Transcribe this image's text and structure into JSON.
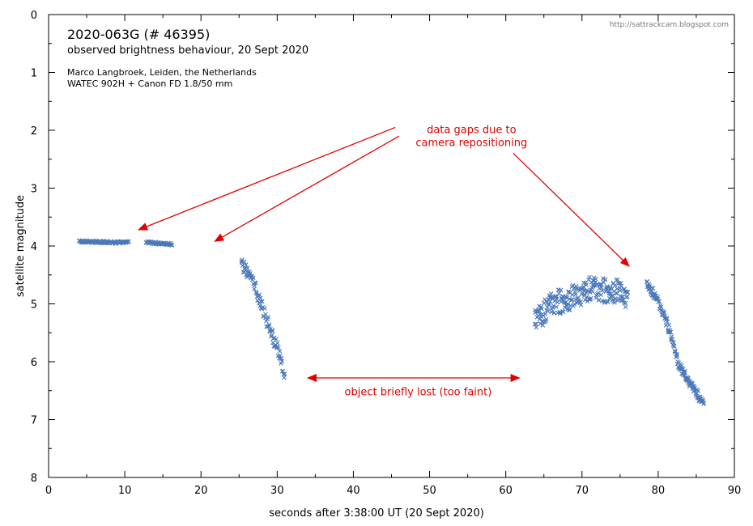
{
  "chart_data": {
    "type": "scatter",
    "title": "2020-063G  (# 46395)",
    "subtitle": "observed brightness behaviour,  20 Sept 2020",
    "credit": [
      "Marco Langbroek, Leiden, the Netherlands",
      "WATEC 902H + Canon FD 1.8/50 mm"
    ],
    "url": "http://sattrackcam.blogspot.com",
    "xlabel": "seconds after 3:38:00 UT (20 Sept 2020)",
    "ylabel": "satellite  magnitude",
    "xlim": [
      0,
      90
    ],
    "ylim": [
      0,
      8
    ],
    "y_inverted": true,
    "grid": false,
    "x_ticks": [
      "0",
      "10",
      "20",
      "30",
      "40",
      "50",
      "60",
      "70",
      "80",
      "90"
    ],
    "y_ticks": [
      "0",
      "1",
      "2",
      "3",
      "4",
      "5",
      "6",
      "7",
      "8"
    ],
    "series_segments": [
      {
        "x_start": 4.0,
        "x_end": 10.5,
        "y": [
          3.92,
          3.93,
          3.93,
          3.94,
          3.93
        ],
        "jitter": 0.02,
        "n": 90
      },
      {
        "x_start": 12.8,
        "x_end": 16.2,
        "y": [
          3.94,
          3.95,
          3.96,
          3.97
        ],
        "jitter": 0.02,
        "n": 45
      },
      {
        "x_start": 25.3,
        "x_end": 31.0,
        "y": [
          4.3,
          4.45,
          4.65,
          4.95,
          5.25,
          5.55,
          5.85,
          6.25
        ],
        "jitter": 0.12,
        "n": 90
      },
      {
        "x_start": 63.8,
        "x_end": 76.0,
        "y": [
          5.2,
          5.15,
          4.95,
          4.95,
          4.95,
          4.85,
          4.75,
          4.7,
          4.75,
          4.8,
          4.8,
          4.85
        ],
        "jitter": 0.22,
        "n": 230
      },
      {
        "x_start": 78.5,
        "x_end": 86.0,
        "y": [
          4.65,
          4.85,
          5.15,
          5.55,
          6.1,
          6.3,
          6.5,
          6.75
        ],
        "jitter": 0.08,
        "n": 140
      }
    ],
    "annotations": [
      {
        "text": [
          "data gaps due to",
          "camera repositioning"
        ],
        "label_x": 55.5,
        "label_y": 2.05,
        "arrows": [
          {
            "from": [
              45.5,
              1.95
            ],
            "to": [
              11.8,
              3.72
            ]
          },
          {
            "from": [
              46.0,
              2.1
            ],
            "to": [
              21.8,
              3.92
            ]
          },
          {
            "from": [
              61.0,
              2.4
            ],
            "to": [
              76.2,
              4.35
            ]
          }
        ]
      },
      {
        "text": [
          "object briefly lost (too faint)"
        ],
        "label_x": 48.5,
        "label_y": 6.58,
        "double_arrow": {
          "from": [
            34.0,
            6.28
          ],
          "to": [
            61.8,
            6.28
          ]
        }
      }
    ],
    "colors": {
      "points": "#4a78b8",
      "annotation": "#e00000"
    }
  }
}
